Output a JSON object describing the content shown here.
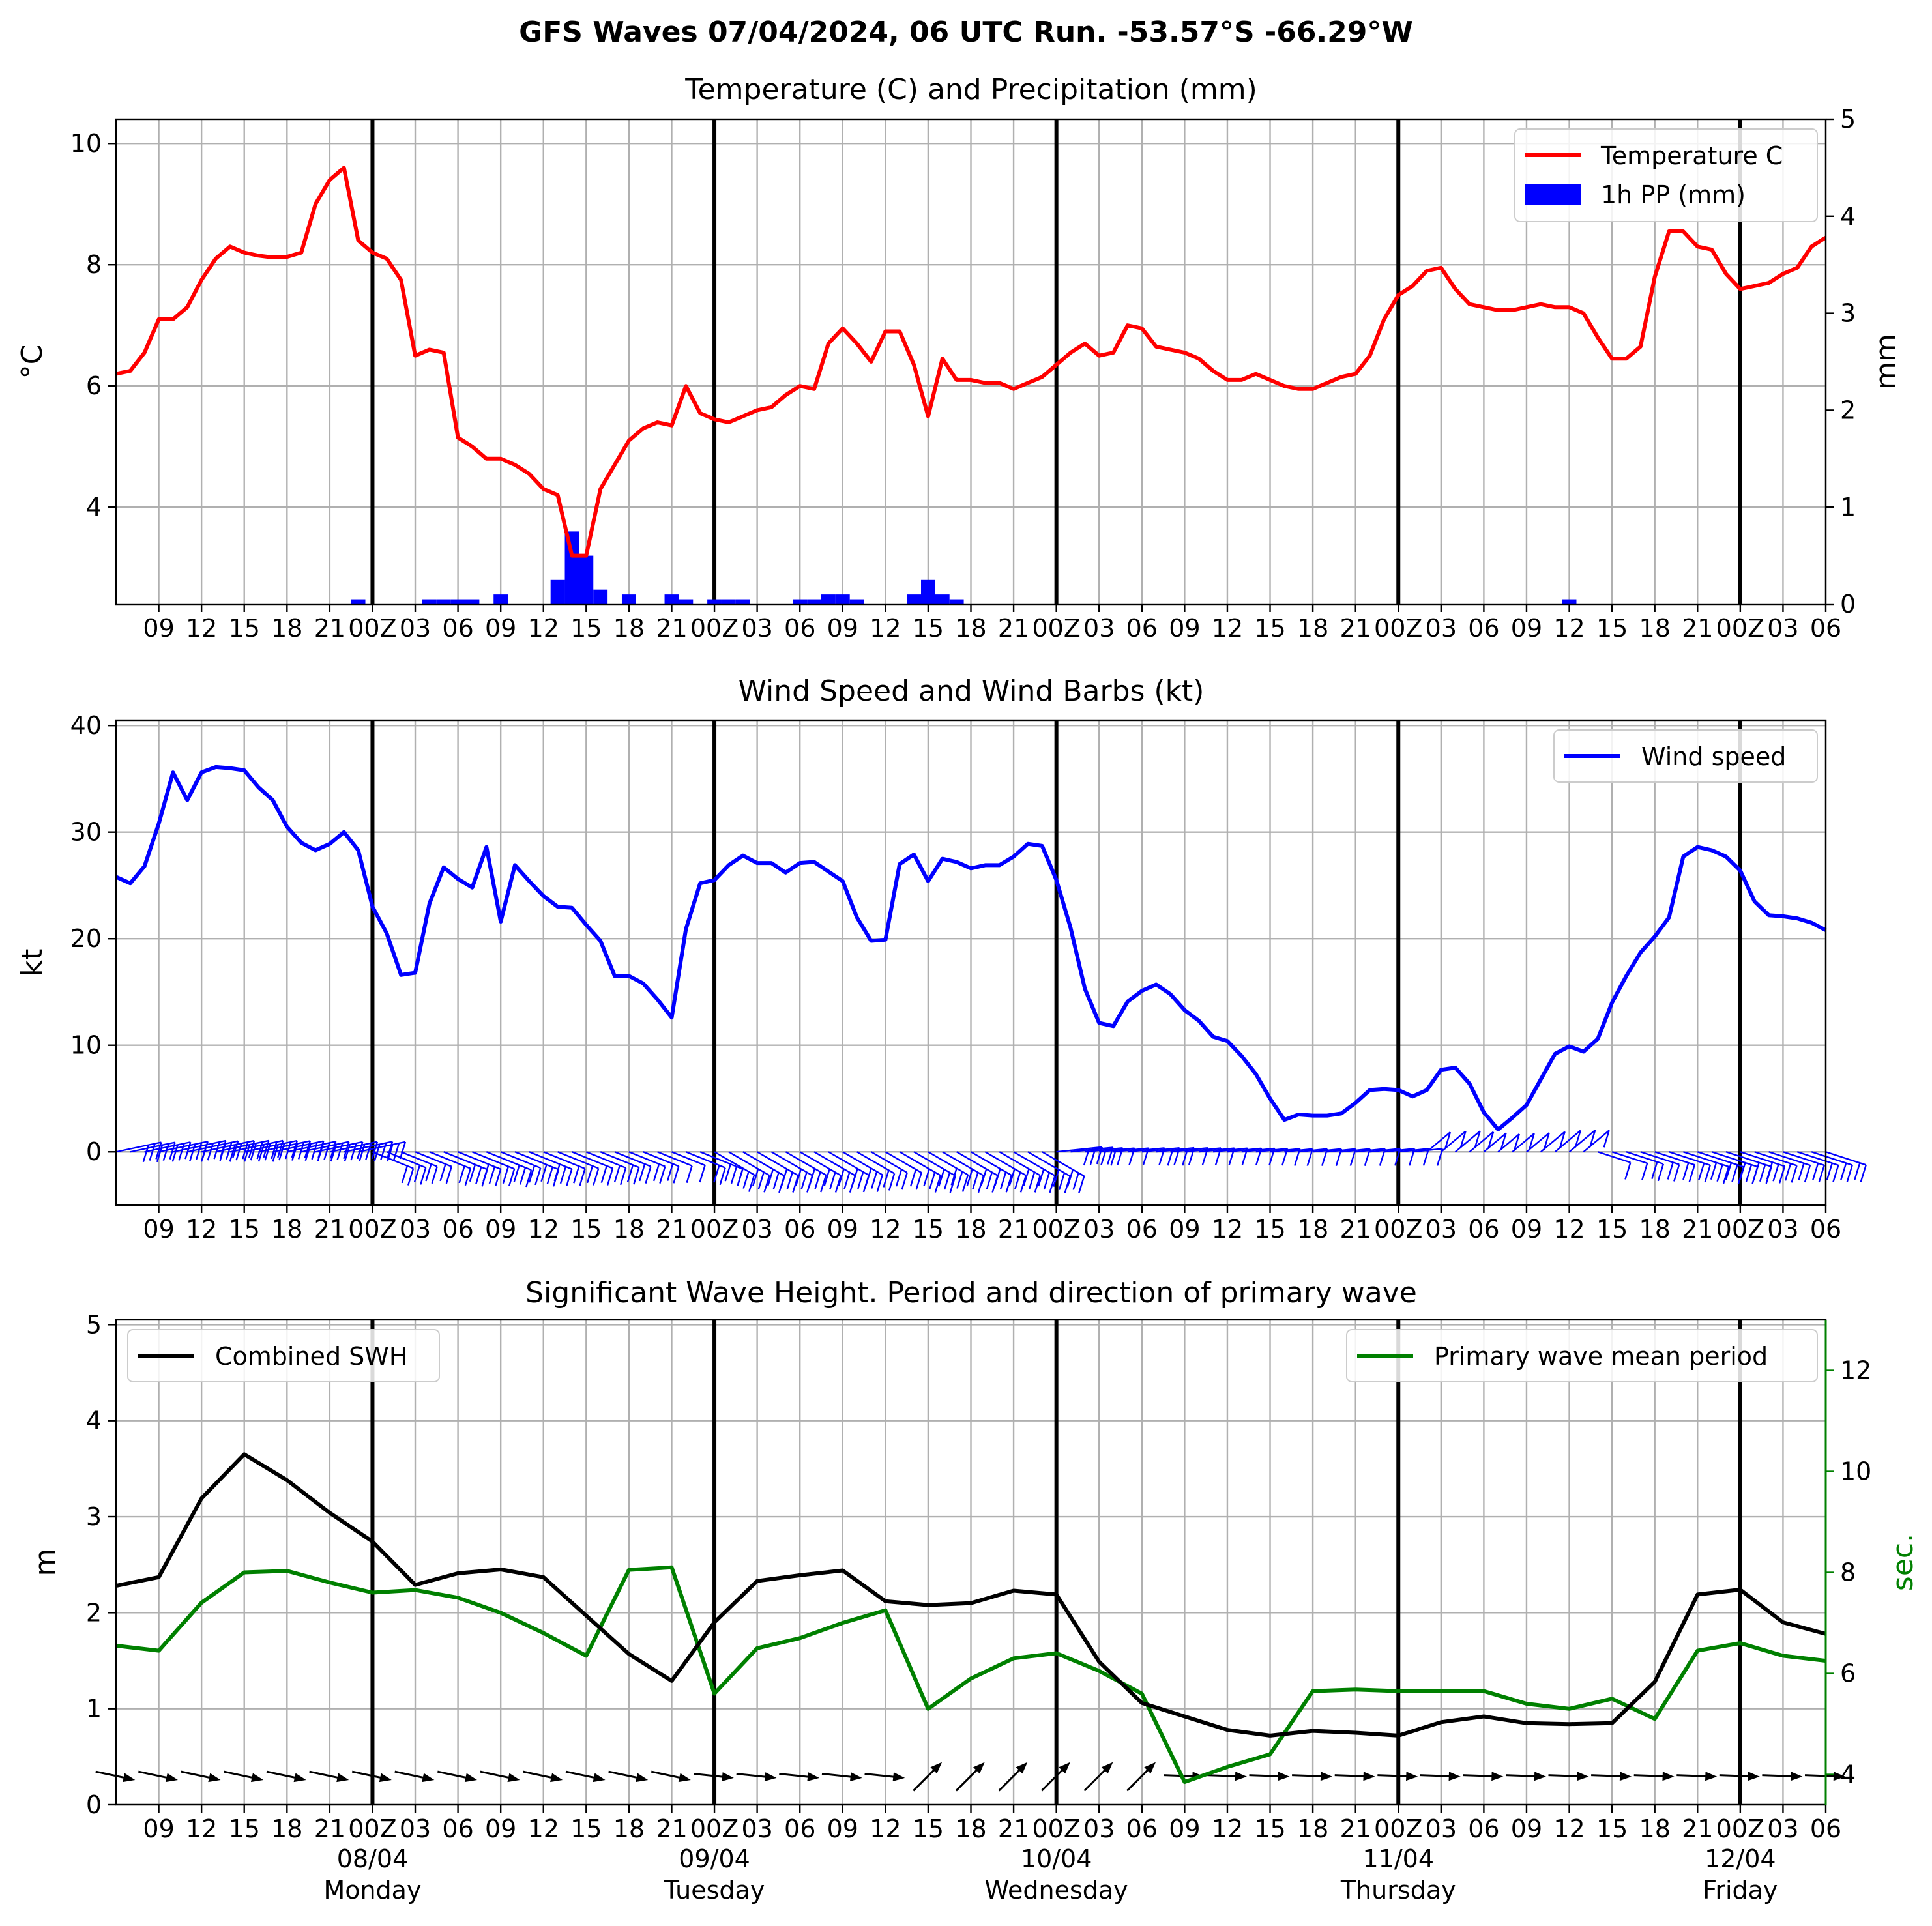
{
  "suptitle": "GFS Waves 07/04/2024, 06 UTC Run. -53.57°S -66.29°W",
  "x_tick_labels": [
    "09",
    "12",
    "15",
    "18",
    "21",
    "00Z",
    "03",
    "06",
    "09",
    "12",
    "15",
    "18",
    "21",
    "00Z",
    "03",
    "06",
    "09",
    "12",
    "15",
    "18",
    "21",
    "00Z",
    "03",
    "06",
    "09",
    "12",
    "15",
    "18",
    "21",
    "00Z",
    "03",
    "06",
    "09",
    "12",
    "15",
    "18",
    "21",
    "00Z",
    "03",
    "06"
  ],
  "x_tick_hours": [
    3,
    6,
    9,
    12,
    15,
    18,
    21,
    24,
    27,
    30,
    33,
    36,
    39,
    42,
    45,
    48,
    51,
    54,
    57,
    60,
    63,
    66,
    69,
    72,
    75,
    78,
    81,
    84,
    87,
    90,
    93,
    96,
    99,
    102,
    105,
    108,
    111,
    114,
    117,
    120
  ],
  "day_boundaries_hours": [
    18,
    42,
    66,
    90,
    114
  ],
  "date_labels": [
    {
      "hour": 18,
      "date": "08/04",
      "weekday": "Monday"
    },
    {
      "hour": 42,
      "date": "09/04",
      "weekday": "Tuesday"
    },
    {
      "hour": 66,
      "date": "10/04",
      "weekday": "Wednesday"
    },
    {
      "hour": 90,
      "date": "11/04",
      "weekday": "Thursday"
    },
    {
      "hour": 114,
      "date": "12/04",
      "weekday": "Friday"
    }
  ],
  "chart_data": [
    {
      "type": "line",
      "title": "Temperature (C) and Precipitation (mm)",
      "xlim_hours": [
        0,
        120
      ],
      "x_note": "hours after 07/04/2024 06 UTC",
      "ylabel": "°C",
      "ylim": [
        2.4,
        10.4
      ],
      "yticks": [
        4,
        6,
        8,
        10
      ],
      "y2label": "mm",
      "y2lim": [
        0,
        5
      ],
      "y2ticks": [
        0,
        1,
        2,
        3,
        4,
        5
      ],
      "grid": true,
      "legend_position": "upper right",
      "series": [
        {
          "name": "Temperature C",
          "color": "#ff0000",
          "x": [
            0,
            1,
            2,
            3,
            4,
            5,
            6,
            7,
            8,
            9,
            10,
            11,
            12,
            13,
            14,
            15,
            16,
            17,
            18,
            19,
            20,
            21,
            22,
            23,
            24,
            25,
            26,
            27,
            28,
            29,
            30,
            31,
            32,
            33,
            34,
            35,
            36,
            37,
            38,
            39,
            40,
            41,
            42,
            43,
            44,
            45,
            46,
            47,
            48,
            49,
            50,
            51,
            52,
            53,
            54,
            55,
            56,
            57,
            58,
            59,
            60,
            61,
            62,
            63,
            64,
            65,
            66,
            67,
            68,
            69,
            70,
            71,
            72,
            73,
            74,
            75,
            76,
            77,
            78,
            79,
            80,
            81,
            82,
            83,
            84,
            85,
            86,
            87,
            88,
            89,
            90,
            91,
            92,
            93,
            94,
            95,
            96,
            97,
            98,
            99,
            100,
            101,
            102,
            103,
            104,
            105,
            106,
            107,
            108,
            109,
            110,
            111,
            112,
            113,
            114,
            115,
            116,
            117,
            118,
            119,
            120
          ],
          "y": [
            6.2,
            6.25,
            6.55,
            7.1,
            7.1,
            7.3,
            7.75,
            8.1,
            8.3,
            8.2,
            8.15,
            8.12,
            8.13,
            8.2,
            9.0,
            9.4,
            9.6,
            8.4,
            8.2,
            8.1,
            7.75,
            6.5,
            6.6,
            6.55,
            5.15,
            5.0,
            4.8,
            4.8,
            4.7,
            4.55,
            4.3,
            4.2,
            3.2,
            3.2,
            4.3,
            4.7,
            5.1,
            5.3,
            5.4,
            5.35,
            6.0,
            5.55,
            5.45,
            5.4,
            5.5,
            5.6,
            5.65,
            5.85,
            6.0,
            5.95,
            6.7,
            6.95,
            6.7,
            6.4,
            6.9,
            6.9,
            6.35,
            5.5,
            6.45,
            6.1,
            6.1,
            6.05,
            6.05,
            5.95,
            6.05,
            6.15,
            6.35,
            6.55,
            6.7,
            6.5,
            6.55,
            7.0,
            6.95,
            6.65,
            6.6,
            6.55,
            6.45,
            6.25,
            6.1,
            6.1,
            6.2,
            6.1,
            6.0,
            5.95,
            5.95,
            6.05,
            6.15,
            6.2,
            6.5,
            7.1,
            7.5,
            7.65,
            7.9,
            7.95,
            7.6,
            7.35,
            7.3,
            7.25,
            7.25,
            7.3,
            7.35,
            7.3,
            7.3,
            7.2,
            6.8,
            6.45,
            6.45,
            6.65,
            7.8,
            8.55,
            8.55,
            8.3,
            8.25,
            7.85,
            7.6,
            7.65,
            7.7,
            7.85,
            7.95,
            8.3,
            8.45
          ]
        },
        {
          "name": "1h PP (mm)",
          "type": "bar",
          "axis": "right",
          "color": "#0000ff",
          "x": [
            17,
            22,
            23,
            24,
            25,
            27,
            31,
            32,
            33,
            34,
            36,
            39,
            40,
            42,
            43,
            44,
            48,
            49,
            50,
            51,
            52,
            56,
            57,
            58,
            59,
            102
          ],
          "values": [
            0.05,
            0.05,
            0.05,
            0.05,
            0.05,
            0.1,
            0.25,
            0.75,
            0.5,
            0.15,
            0.1,
            0.1,
            0.05,
            0.05,
            0.05,
            0.05,
            0.05,
            0.05,
            0.1,
            0.1,
            0.05,
            0.1,
            0.25,
            0.1,
            0.05,
            0.05
          ]
        }
      ]
    },
    {
      "type": "line",
      "title": "Wind Speed and Wind Barbs (kt)",
      "xlim_hours": [
        0,
        120
      ],
      "ylabel": "kt",
      "ylim": [
        -5,
        40.5
      ],
      "yticks": [
        0,
        10,
        20,
        30,
        40
      ],
      "grid": true,
      "legend_position": "upper right",
      "series": [
        {
          "name": "Wind speed",
          "color": "#0000ff",
          "x": [
            0,
            1,
            2,
            3,
            4,
            5,
            6,
            7,
            8,
            9,
            10,
            11,
            12,
            13,
            14,
            15,
            16,
            17,
            18,
            19,
            20,
            21,
            22,
            23,
            24,
            25,
            26,
            27,
            28,
            29,
            30,
            31,
            32,
            33,
            34,
            35,
            36,
            37,
            38,
            39,
            40,
            41,
            42,
            43,
            44,
            45,
            46,
            47,
            48,
            49,
            50,
            51,
            52,
            53,
            54,
            55,
            56,
            57,
            58,
            59,
            60,
            61,
            62,
            63,
            64,
            65,
            66,
            67,
            68,
            69,
            70,
            71,
            72,
            73,
            74,
            75,
            76,
            77,
            78,
            79,
            80,
            81,
            82,
            83,
            84,
            85,
            86,
            87,
            88,
            89,
            90,
            91,
            92,
            93,
            94,
            95,
            96,
            97,
            98,
            99,
            100,
            101,
            102,
            103,
            104,
            105,
            106,
            107,
            108,
            109,
            110,
            111,
            112,
            113,
            114,
            115,
            116,
            117,
            118,
            119,
            120
          ],
          "y": [
            25.8,
            25.2,
            26.8,
            30.8,
            35.6,
            33.0,
            35.6,
            36.1,
            36.0,
            35.8,
            34.2,
            33.0,
            30.5,
            29.0,
            28.3,
            28.9,
            30.0,
            28.3,
            23.0,
            20.5,
            16.6,
            16.8,
            23.3,
            26.7,
            25.6,
            24.8,
            28.6,
            21.6,
            26.9,
            25.4,
            24.0,
            23.0,
            22.9,
            21.3,
            19.8,
            16.5,
            16.5,
            15.8,
            14.3,
            12.6,
            20.9,
            25.2,
            25.5,
            26.9,
            27.8,
            27.1,
            27.1,
            26.2,
            27.1,
            27.2,
            26.3,
            25.4,
            22.0,
            19.8,
            19.9,
            27.0,
            27.9,
            25.4,
            27.5,
            27.2,
            26.6,
            26.9,
            26.9,
            27.7,
            28.9,
            28.7,
            25.5,
            21.0,
            15.3,
            12.1,
            11.8,
            14.1,
            15.1,
            15.7,
            14.8,
            13.3,
            12.3,
            10.8,
            10.4,
            9.0,
            7.3,
            5.0,
            3.0,
            3.5,
            3.4,
            3.4,
            3.6,
            4.6,
            5.8,
            5.9,
            5.8,
            5.2,
            5.8,
            7.7,
            7.9,
            6.4,
            3.7,
            2.1,
            3.2,
            4.4,
            6.8,
            9.2,
            9.9,
            9.4,
            10.6,
            14.0,
            16.5,
            18.7,
            20.2,
            22.0,
            27.7,
            28.6,
            28.3,
            27.7,
            26.4,
            23.5,
            22.2,
            22.1,
            21.9,
            21.5,
            20.8
          ]
        }
      ],
      "wind_barbs_color": "#0000ff"
    },
    {
      "type": "line",
      "title": "Significant Wave Height. Period and direction of primary wave",
      "xlim_hours": [
        0,
        120
      ],
      "ylabel": "m",
      "ylim": [
        0,
        5.05
      ],
      "yticks": [
        0,
        1,
        2,
        3,
        4,
        5
      ],
      "y2label": "sec.",
      "y2lim": [
        3.4,
        13.0
      ],
      "y2ticks": [
        4,
        6,
        8,
        10,
        12
      ],
      "y2_color": "#008000",
      "grid": true,
      "legends": [
        "upper left",
        "upper right"
      ],
      "series": [
        {
          "name": "Combined SWH",
          "color": "#000000",
          "x": [
            0,
            3,
            6,
            9,
            12,
            15,
            18,
            21,
            24,
            27,
            30,
            33,
            36,
            39,
            42,
            45,
            48,
            51,
            54,
            57,
            60,
            63,
            66,
            69,
            72,
            75,
            78,
            81,
            84,
            87,
            90,
            93,
            96,
            99,
            102,
            105,
            108,
            111,
            114,
            117,
            120
          ],
          "y": [
            2.28,
            2.37,
            3.19,
            3.65,
            3.38,
            3.04,
            2.74,
            2.29,
            2.41,
            2.45,
            2.37,
            1.97,
            1.57,
            1.29,
            1.9,
            2.33,
            2.39,
            2.44,
            2.12,
            2.08,
            2.1,
            2.23,
            2.19,
            1.49,
            1.06,
            0.92,
            0.78,
            0.72,
            0.77,
            0.75,
            0.72,
            0.86,
            0.92,
            0.85,
            0.84,
            0.85,
            1.28,
            2.19,
            2.24,
            1.9,
            1.78
          ]
        },
        {
          "name": "Primary wave mean period",
          "axis": "right",
          "color": "#008000",
          "x": [
            0,
            3,
            6,
            9,
            12,
            15,
            18,
            21,
            24,
            27,
            30,
            33,
            36,
            39,
            42,
            45,
            48,
            51,
            54,
            57,
            60,
            63,
            66,
            69,
            72,
            75,
            78,
            81,
            84,
            87,
            90,
            93,
            96,
            99,
            102,
            105,
            108,
            111,
            114,
            117,
            120
          ],
          "y": [
            6.55,
            6.45,
            7.4,
            8.0,
            8.03,
            7.8,
            7.6,
            7.65,
            7.5,
            7.2,
            6.8,
            6.35,
            8.05,
            8.1,
            5.6,
            6.5,
            6.7,
            7.0,
            7.25,
            5.3,
            5.9,
            6.3,
            6.4,
            6.05,
            5.6,
            3.85,
            4.15,
            4.4,
            5.65,
            5.68,
            5.65,
            5.65,
            5.65,
            5.4,
            5.3,
            5.5,
            5.1,
            6.45,
            6.6,
            6.35,
            6.25
          ]
        }
      ],
      "direction_arrows_color": "#000000"
    }
  ]
}
